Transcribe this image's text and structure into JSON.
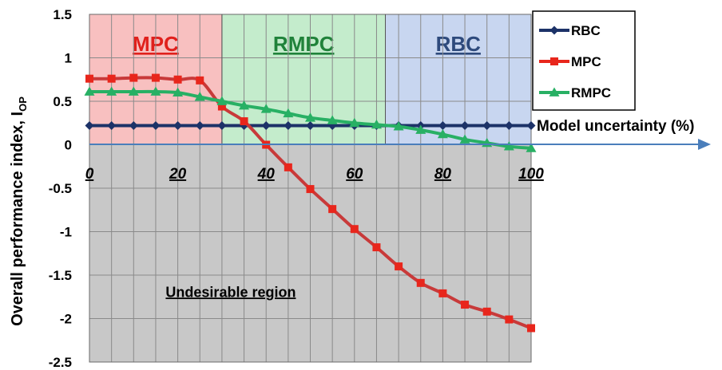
{
  "chart_data": {
    "type": "line",
    "ylabel": "Overall performance index, I",
    "ylabel_sub": "OP",
    "xlabel": "Model uncertainty (%)",
    "ylim": [
      -2.5,
      1.5
    ],
    "xlim": [
      0,
      100
    ],
    "yticks": [
      "1.5",
      "1",
      "0.5",
      "0",
      "-0.5",
      "-1",
      "-1.5",
      "-2",
      "-2.5"
    ],
    "xticks": [
      "0",
      "20",
      "40",
      "60",
      "80",
      "100"
    ],
    "grid": true,
    "legend_position": "top-right",
    "regions": [
      {
        "label": "MPC",
        "x_start": 0,
        "x_end": 30,
        "fill": "#f8c0c0",
        "label_color": "#e0201c"
      },
      {
        "label": "RMPC",
        "x_start": 30,
        "x_end": 67,
        "fill": "#c4eccc",
        "label_color": "#20823a"
      },
      {
        "label": "RBC",
        "x_start": 67,
        "x_end": 100,
        "fill": "#c8d6f0",
        "label_color": "#2e4a7c"
      }
    ],
    "undesirable_region": {
      "label": "Undesirable region",
      "fill": "#c8c8c8"
    },
    "series": [
      {
        "name": "RBC",
        "color": "#1c3268",
        "marker": "diamond",
        "x": [
          0,
          5,
          10,
          15,
          20,
          25,
          30,
          35,
          40,
          45,
          50,
          55,
          60,
          65,
          70,
          75,
          80,
          85,
          90,
          95,
          100
        ],
        "y": [
          0.22,
          0.22,
          0.22,
          0.22,
          0.22,
          0.22,
          0.22,
          0.22,
          0.22,
          0.22,
          0.22,
          0.22,
          0.22,
          0.22,
          0.22,
          0.22,
          0.22,
          0.22,
          0.22,
          0.22,
          0.22
        ]
      },
      {
        "name": "MPC",
        "color": "#e8261c",
        "line_color": "#c83a3a",
        "marker": "square",
        "x": [
          0,
          5,
          10,
          15,
          20,
          25,
          30,
          35,
          40,
          45,
          50,
          55,
          60,
          65,
          70,
          75,
          80,
          85,
          90,
          95,
          100
        ],
        "y": [
          0.76,
          0.76,
          0.77,
          0.77,
          0.75,
          0.74,
          0.44,
          0.27,
          0.0,
          -0.26,
          -0.51,
          -0.74,
          -0.97,
          -1.18,
          -1.4,
          -1.59,
          -1.71,
          -1.84,
          -1.92,
          -2.01,
          -2.11
        ]
      },
      {
        "name": "RMPC",
        "color": "#28b064",
        "marker": "triangle",
        "x": [
          0,
          5,
          10,
          15,
          20,
          25,
          30,
          35,
          40,
          45,
          50,
          55,
          60,
          65,
          70,
          75,
          80,
          85,
          90,
          95,
          100
        ],
        "y": [
          0.61,
          0.61,
          0.61,
          0.61,
          0.6,
          0.55,
          0.5,
          0.45,
          0.41,
          0.36,
          0.31,
          0.28,
          0.25,
          0.23,
          0.21,
          0.17,
          0.12,
          0.06,
          0.02,
          -0.02,
          -0.04
        ]
      }
    ]
  }
}
